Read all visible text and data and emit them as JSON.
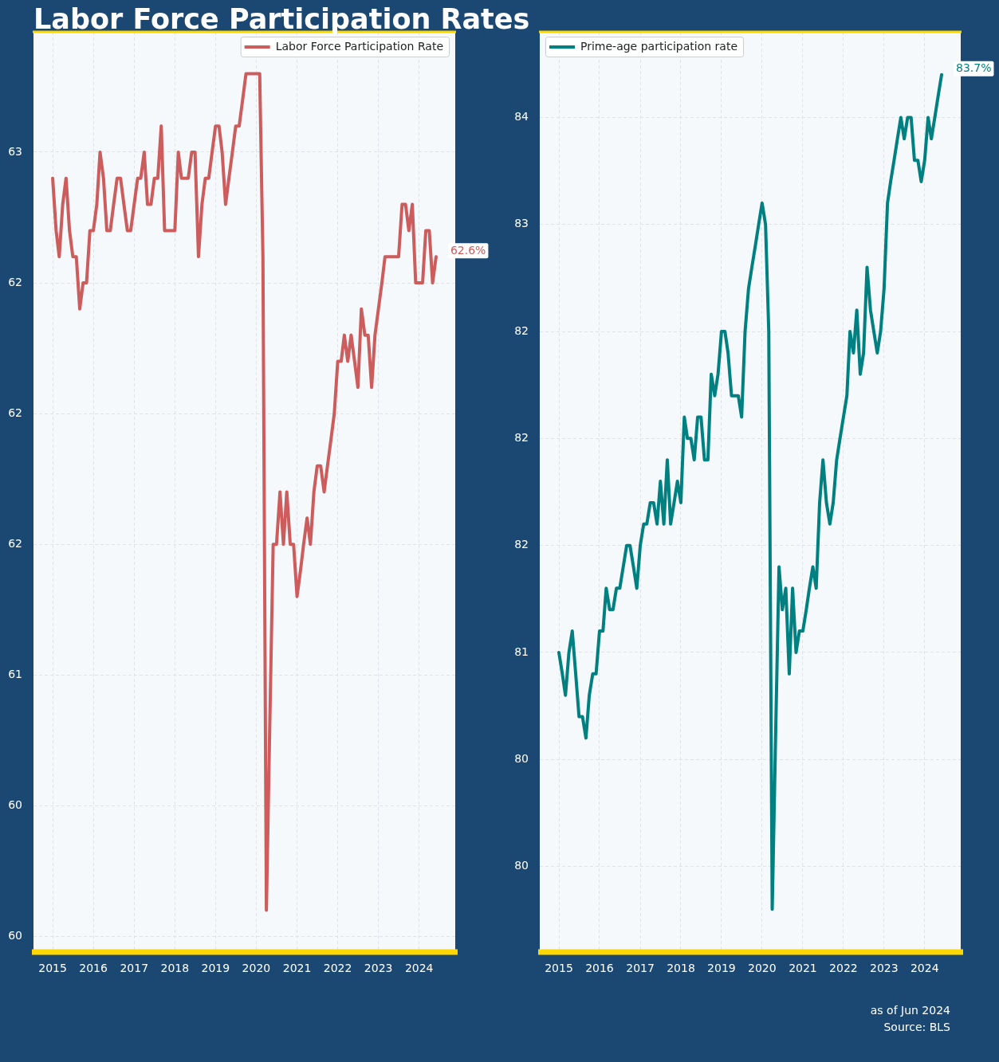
{
  "chart_data": [
    {
      "type": "line",
      "title": "Labor Force Participation Rates",
      "x": [
        "2015-01",
        "2015-02",
        "2015-03",
        "2015-04",
        "2015-05",
        "2015-06",
        "2015-07",
        "2015-08",
        "2015-09",
        "2015-10",
        "2015-11",
        "2015-12",
        "2016-01",
        "2016-02",
        "2016-03",
        "2016-04",
        "2016-05",
        "2016-06",
        "2016-07",
        "2016-08",
        "2016-09",
        "2016-10",
        "2016-11",
        "2016-12",
        "2017-01",
        "2017-02",
        "2017-03",
        "2017-04",
        "2017-05",
        "2017-06",
        "2017-07",
        "2017-08",
        "2017-09",
        "2017-10",
        "2017-11",
        "2017-12",
        "2018-01",
        "2018-02",
        "2018-03",
        "2018-04",
        "2018-05",
        "2018-06",
        "2018-07",
        "2018-08",
        "2018-09",
        "2018-10",
        "2018-11",
        "2018-12",
        "2019-01",
        "2019-02",
        "2019-03",
        "2019-04",
        "2019-05",
        "2019-06",
        "2019-07",
        "2019-08",
        "2019-09",
        "2019-10",
        "2019-11",
        "2019-12",
        "2020-01",
        "2020-02",
        "2020-03",
        "2020-04",
        "2020-05",
        "2020-06",
        "2020-07",
        "2020-08",
        "2020-09",
        "2020-10",
        "2020-11",
        "2020-12",
        "2021-01",
        "2021-02",
        "2021-03",
        "2021-04",
        "2021-05",
        "2021-06",
        "2021-07",
        "2021-08",
        "2021-09",
        "2021-10",
        "2021-11",
        "2021-12",
        "2022-01",
        "2022-02",
        "2022-03",
        "2022-04",
        "2022-05",
        "2022-06",
        "2022-07",
        "2022-08",
        "2022-09",
        "2022-10",
        "2022-11",
        "2022-12",
        "2023-01",
        "2023-02",
        "2023-03",
        "2023-04",
        "2023-05",
        "2023-06",
        "2023-07",
        "2023-08",
        "2023-09",
        "2023-10",
        "2023-11",
        "2023-12",
        "2024-01",
        "2024-02",
        "2024-03",
        "2024-04",
        "2024-05",
        "2024-06"
      ],
      "series": [
        {
          "name": "Labor Force Participation Rate",
          "color": "#cd5c5c",
          "values": [
            62.9,
            62.7,
            62.6,
            62.8,
            62.9,
            62.7,
            62.6,
            62.6,
            62.4,
            62.5,
            62.5,
            62.7,
            62.7,
            62.8,
            63.0,
            62.9,
            62.7,
            62.7,
            62.8,
            62.9,
            62.9,
            62.8,
            62.7,
            62.7,
            62.8,
            62.9,
            62.9,
            63.0,
            62.8,
            62.8,
            62.9,
            62.9,
            63.1,
            62.7,
            62.7,
            62.7,
            62.7,
            63.0,
            62.9,
            62.9,
            62.9,
            63.0,
            63.0,
            62.6,
            62.8,
            62.9,
            62.9,
            63.0,
            63.1,
            63.1,
            63.0,
            62.8,
            62.9,
            63.0,
            63.1,
            63.1,
            63.2,
            63.3,
            63.3,
            63.3,
            63.3,
            63.3,
            62.6,
            60.1,
            60.8,
            61.5,
            61.5,
            61.7,
            61.5,
            61.7,
            61.5,
            61.5,
            61.3,
            61.4,
            61.5,
            61.6,
            61.5,
            61.7,
            61.8,
            61.8,
            61.7,
            61.8,
            61.9,
            62.0,
            62.2,
            62.2,
            62.3,
            62.2,
            62.3,
            62.2,
            62.1,
            62.4,
            62.3,
            62.3,
            62.1,
            62.3,
            62.4,
            62.5,
            62.6,
            62.6,
            62.6,
            62.6,
            62.6,
            62.8,
            62.8,
            62.7,
            62.8,
            62.5,
            62.5,
            62.5,
            62.7,
            62.7,
            62.5,
            62.6
          ]
        }
      ],
      "xlim": [
        "2014-07-13",
        "2024-11-20"
      ],
      "xticks": [
        "2015",
        "2016",
        "2017",
        "2018",
        "2019",
        "2020",
        "2021",
        "2022",
        "2023",
        "2024"
      ],
      "ylim": [
        59.94,
        63.46
      ],
      "yticks": [
        60,
        {
          "value": 60.5,
          "label": "60"
        },
        {
          "value": 61.0,
          "label": "61"
        },
        {
          "value": 61.5,
          "label": "62"
        },
        {
          "value": 62.0,
          "label": "62"
        },
        {
          "value": 62.5,
          "label": "62"
        },
        63
      ],
      "grid": true,
      "legend": "top right",
      "annotations": [
        {
          "text": "62.6%",
          "x": "2024-06",
          "y": 62.6
        }
      ]
    },
    {
      "type": "line",
      "x": [
        "2015-01",
        "2015-02",
        "2015-03",
        "2015-04",
        "2015-05",
        "2015-06",
        "2015-07",
        "2015-08",
        "2015-09",
        "2015-10",
        "2015-11",
        "2015-12",
        "2016-01",
        "2016-02",
        "2016-03",
        "2016-04",
        "2016-05",
        "2016-06",
        "2016-07",
        "2016-08",
        "2016-09",
        "2016-10",
        "2016-11",
        "2016-12",
        "2017-01",
        "2017-02",
        "2017-03",
        "2017-04",
        "2017-05",
        "2017-06",
        "2017-07",
        "2017-08",
        "2017-09",
        "2017-10",
        "2017-11",
        "2017-12",
        "2018-01",
        "2018-02",
        "2018-03",
        "2018-04",
        "2018-05",
        "2018-06",
        "2018-07",
        "2018-08",
        "2018-09",
        "2018-10",
        "2018-11",
        "2018-12",
        "2019-01",
        "2019-02",
        "2019-03",
        "2019-04",
        "2019-05",
        "2019-06",
        "2019-07",
        "2019-08",
        "2019-09",
        "2019-10",
        "2019-11",
        "2019-12",
        "2020-01",
        "2020-02",
        "2020-03",
        "2020-04",
        "2020-05",
        "2020-06",
        "2020-07",
        "2020-08",
        "2020-09",
        "2020-10",
        "2020-11",
        "2020-12",
        "2021-01",
        "2021-02",
        "2021-03",
        "2021-04",
        "2021-05",
        "2021-06",
        "2021-07",
        "2021-08",
        "2021-09",
        "2021-10",
        "2021-11",
        "2021-12",
        "2022-01",
        "2022-02",
        "2022-03",
        "2022-04",
        "2022-05",
        "2022-06",
        "2022-07",
        "2022-08",
        "2022-09",
        "2022-10",
        "2022-11",
        "2022-12",
        "2023-01",
        "2023-02",
        "2023-03",
        "2023-04",
        "2023-05",
        "2023-06",
        "2023-07",
        "2023-08",
        "2023-09",
        "2023-10",
        "2023-11",
        "2023-12",
        "2024-01",
        "2024-02",
        "2024-03",
        "2024-04",
        "2024-05",
        "2024-06"
      ],
      "series": [
        {
          "name": "Prime-age participation rate",
          "color": "#008080",
          "values": [
            81.0,
            80.9,
            80.8,
            81.0,
            81.1,
            80.9,
            80.7,
            80.7,
            80.6,
            80.8,
            80.9,
            80.9,
            81.1,
            81.1,
            81.3,
            81.2,
            81.2,
            81.3,
            81.3,
            81.4,
            81.5,
            81.5,
            81.4,
            81.3,
            81.5,
            81.6,
            81.6,
            81.7,
            81.7,
            81.6,
            81.8,
            81.6,
            81.9,
            81.6,
            81.7,
            81.8,
            81.7,
            82.1,
            82.0,
            82.0,
            81.9,
            82.1,
            82.1,
            81.9,
            81.9,
            82.3,
            82.2,
            82.3,
            82.5,
            82.5,
            82.4,
            82.2,
            82.2,
            82.2,
            82.1,
            82.5,
            82.7,
            82.8,
            82.9,
            83.0,
            83.1,
            83.0,
            82.5,
            79.8,
            80.6,
            81.4,
            81.2,
            81.3,
            80.9,
            81.3,
            81.0,
            81.1,
            81.1,
            81.2,
            81.3,
            81.4,
            81.3,
            81.7,
            81.9,
            81.7,
            81.6,
            81.7,
            81.9,
            82.0,
            82.1,
            82.2,
            82.5,
            82.4,
            82.6,
            82.3,
            82.4,
            82.8,
            82.6,
            82.5,
            82.4,
            82.5,
            82.7,
            83.1,
            83.2,
            83.3,
            83.4,
            83.5,
            83.4,
            83.5,
            83.5,
            83.3,
            83.3,
            83.2,
            83.3,
            83.5,
            83.4,
            83.5,
            83.6,
            83.7
          ]
        }
      ],
      "xlim": [
        "2014-07-13",
        "2024-11-20"
      ],
      "xticks": [
        "2015",
        "2016",
        "2017",
        "2018",
        "2019",
        "2020",
        "2021",
        "2022",
        "2023",
        "2024"
      ],
      "ylim": [
        79.6,
        83.9
      ],
      "yticks": [
        80,
        {
          "value": 80.5,
          "label": "80"
        },
        81,
        {
          "value": 81.5,
          "label": "82"
        },
        {
          "value": 82.0,
          "label": "82"
        },
        {
          "value": 82.5,
          "label": "82"
        },
        83,
        {
          "value": 83.5,
          "label": "84"
        }
      ],
      "grid": true,
      "legend": "top left",
      "annotations": [
        {
          "text": "83.7%",
          "x": "2024-06",
          "y": 83.7
        },
        "as of Jun 2024",
        "Source: BLS"
      ]
    }
  ]
}
